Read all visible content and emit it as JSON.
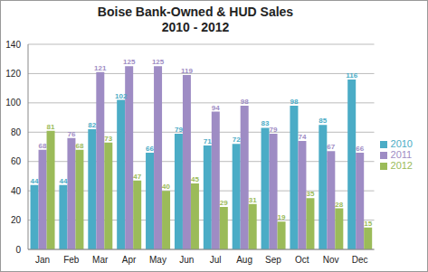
{
  "chart_data": {
    "type": "bar",
    "title": "Boise Bank-Owned & HUD Sales",
    "subtitle": "2010 - 2012",
    "categories": [
      "Jan",
      "Feb",
      "Mar",
      "Apr",
      "May",
      "Jun",
      "Jul",
      "Aug",
      "Sep",
      "Oct",
      "Nov",
      "Dec"
    ],
    "series": [
      {
        "name": "2010",
        "color": "#4bacc6",
        "values": [
          44,
          44,
          82,
          102,
          66,
          79,
          71,
          72,
          83,
          98,
          85,
          116
        ]
      },
      {
        "name": "2011",
        "color": "#9e8cc4",
        "values": [
          68,
          76,
          121,
          125,
          125,
          119,
          94,
          98,
          79,
          74,
          67,
          66
        ]
      },
      {
        "name": "2012",
        "color": "#9bbb59",
        "values": [
          81,
          68,
          73,
          47,
          40,
          45,
          29,
          31,
          19,
          35,
          28,
          15
        ]
      }
    ],
    "ylim": [
      0,
      140
    ],
    "yticks": [
      0,
      20,
      40,
      60,
      80,
      100,
      120,
      140
    ],
    "grid": true,
    "legend": "right",
    "data_labels": true
  }
}
